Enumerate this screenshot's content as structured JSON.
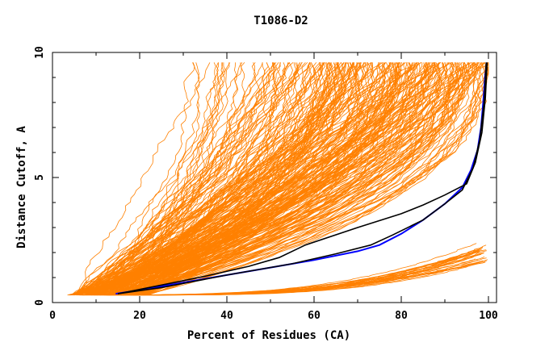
{
  "chart_data": {
    "type": "line",
    "title": "T1086-D2",
    "xlabel": "Percent of Residues (CA)",
    "ylabel": "Distance Cutoff, A",
    "xlim": [
      0,
      101
    ],
    "ylim": [
      0,
      10
    ],
    "x_ticks": [
      0,
      20,
      40,
      60,
      80,
      100
    ],
    "y_ticks": [
      0,
      5,
      10
    ],
    "x_tick_labels": [
      "0",
      "20",
      "40",
      "60",
      "80",
      "100"
    ],
    "y_tick_labels": [
      "0",
      "5",
      "10"
    ],
    "grid": false,
    "legend": "none",
    "background_series": {
      "count": 300,
      "color": "#ff8000",
      "y_range": [
        0.3,
        9.6
      ],
      "description_note": "many model curves from sparse low-end start to high coverage"
    },
    "series": [
      {
        "color": "#0000ff",
        "x": [
          14.5,
          20,
          30,
          40,
          50,
          60,
          70,
          75,
          80,
          85,
          90,
          94,
          96,
          97.5,
          98.3,
          98.8,
          99.2,
          99.6
        ],
        "y": [
          0.35,
          0.5,
          0.8,
          1.1,
          1.4,
          1.7,
          2.05,
          2.3,
          2.75,
          3.3,
          3.95,
          4.6,
          5.3,
          6.1,
          7.0,
          8.0,
          9.0,
          9.6
        ]
      },
      {
        "color": "#000000",
        "x": [
          15,
          25,
          35,
          45,
          52,
          58,
          70,
          80,
          85,
          90,
          95,
          97,
          98.5,
          99.3,
          99.7
        ],
        "y": [
          0.35,
          0.7,
          1.05,
          1.45,
          1.8,
          2.3,
          3.0,
          3.55,
          3.9,
          4.3,
          4.75,
          5.6,
          6.8,
          8.2,
          9.6
        ]
      },
      {
        "color": "#000000",
        "x": [
          15,
          25,
          40,
          55,
          65,
          73,
          78,
          85,
          90,
          94,
          96.5,
          98,
          99,
          99.5
        ],
        "y": [
          0.35,
          0.6,
          1.1,
          1.55,
          1.95,
          2.3,
          2.7,
          3.3,
          3.95,
          4.5,
          5.4,
          6.5,
          8.0,
          9.6
        ]
      }
    ]
  }
}
